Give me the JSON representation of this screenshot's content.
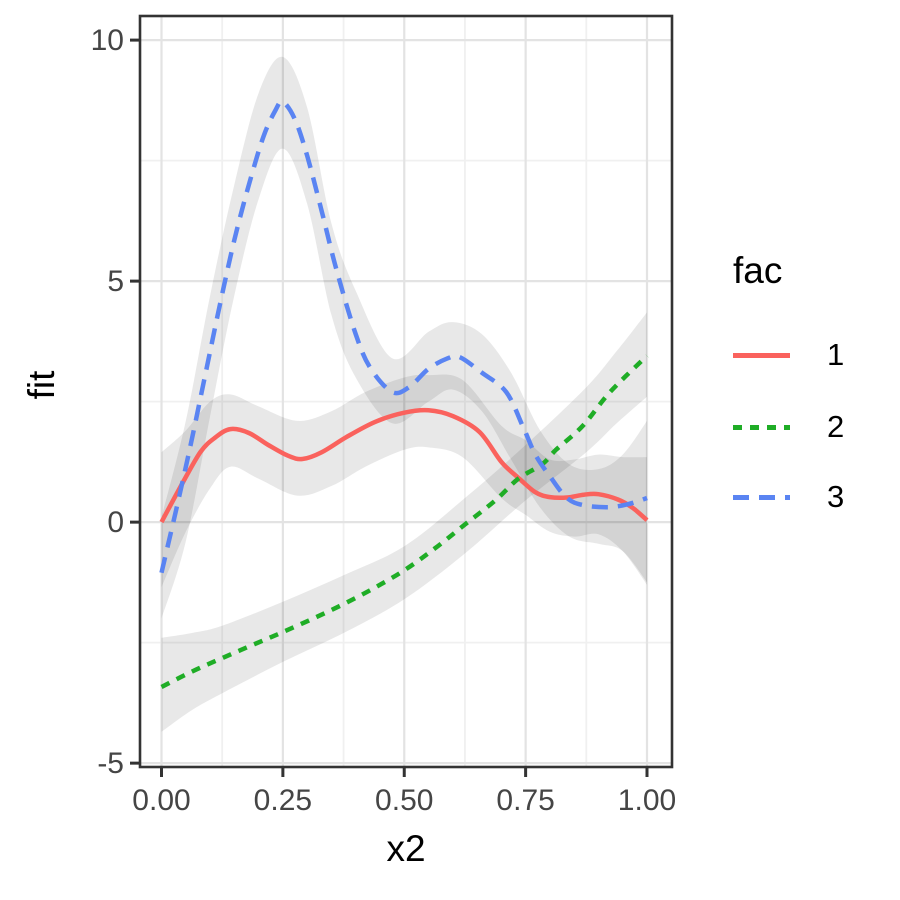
{
  "chart_data": {
    "type": "line",
    "title": "",
    "xlabel": "x2",
    "ylabel": "fit",
    "xlim": [
      -0.0443,
      1.0515
    ],
    "ylim": [
      -5.08,
      10.5
    ],
    "grid": true,
    "panel_border_color": "#333333",
    "major_grid_color": "#e3e3e3",
    "minor_grid_color": "#f0f0f0",
    "tick_color": "#333333",
    "tick_label_color": "#454545",
    "ribbon_fill": "rgba(0,0,0,0.09)",
    "x_ticks": {
      "values": [
        0,
        0.25,
        0.5,
        0.75,
        1.0
      ],
      "labels": [
        "0.00",
        "0.25",
        "0.50",
        "0.75",
        "1.00"
      ]
    },
    "y_ticks": {
      "values": [
        -5,
        0,
        5,
        10
      ],
      "labels": [
        "-5",
        "0",
        "5",
        "10"
      ]
    },
    "x_minor": [
      0.125,
      0.375,
      0.625,
      0.875
    ],
    "y_minor": [
      -2.5,
      2.5,
      7.5
    ],
    "legend": {
      "title": "fac",
      "position": "right"
    },
    "series": [
      {
        "name": "1",
        "color": "#fa625d",
        "dash": "solid",
        "points": [
          [
            0.0,
            0.0
          ],
          [
            0.04,
            0.75
          ],
          [
            0.08,
            1.45
          ],
          [
            0.11,
            1.75
          ],
          [
            0.142,
            1.93
          ],
          [
            0.18,
            1.85
          ],
          [
            0.22,
            1.6
          ],
          [
            0.26,
            1.38
          ],
          [
            0.29,
            1.31
          ],
          [
            0.33,
            1.45
          ],
          [
            0.38,
            1.76
          ],
          [
            0.44,
            2.08
          ],
          [
            0.5,
            2.27
          ],
          [
            0.55,
            2.32
          ],
          [
            0.6,
            2.2
          ],
          [
            0.655,
            1.87
          ],
          [
            0.7,
            1.25
          ],
          [
            0.735,
            0.92
          ],
          [
            0.77,
            0.62
          ],
          [
            0.8,
            0.52
          ],
          [
            0.835,
            0.51
          ],
          [
            0.87,
            0.57
          ],
          [
            0.9,
            0.58
          ],
          [
            0.94,
            0.47
          ],
          [
            0.97,
            0.3
          ],
          [
            1.0,
            0.04
          ]
        ],
        "ribbon": [
          [
            0.0,
            -1.35,
            1.45
          ],
          [
            0.05,
            -0.2,
            1.9
          ],
          [
            0.1,
            0.7,
            2.5
          ],
          [
            0.142,
            1.15,
            2.65
          ],
          [
            0.2,
            0.9,
            2.4
          ],
          [
            0.28,
            0.55,
            2.1
          ],
          [
            0.35,
            0.75,
            2.3
          ],
          [
            0.42,
            1.15,
            2.7
          ],
          [
            0.5,
            1.5,
            3.0
          ],
          [
            0.55,
            1.55,
            3.05
          ],
          [
            0.62,
            1.35,
            2.95
          ],
          [
            0.7,
            0.5,
            2.0
          ],
          [
            0.75,
            0.15,
            1.7
          ],
          [
            0.8,
            -0.2,
            1.3
          ],
          [
            0.85,
            -0.3,
            1.3
          ],
          [
            0.9,
            -0.25,
            1.4
          ],
          [
            0.95,
            -0.6,
            1.35
          ],
          [
            1.0,
            -1.3,
            1.35
          ]
        ]
      },
      {
        "name": "2",
        "color": "#1fad26",
        "dash": "dotted",
        "points": [
          [
            0.0,
            -3.42
          ],
          [
            0.0625,
            -3.1
          ],
          [
            0.125,
            -2.82
          ],
          [
            0.1875,
            -2.55
          ],
          [
            0.25,
            -2.28
          ],
          [
            0.3125,
            -2.0
          ],
          [
            0.375,
            -1.7
          ],
          [
            0.4375,
            -1.37
          ],
          [
            0.5,
            -1.0
          ],
          [
            0.5625,
            -0.55
          ],
          [
            0.625,
            -0.05
          ],
          [
            0.6875,
            0.45
          ],
          [
            0.735,
            0.9
          ],
          [
            0.784,
            1.2
          ],
          [
            0.8125,
            1.5
          ],
          [
            0.868,
            2.0
          ],
          [
            0.924,
            2.7
          ],
          [
            1.0,
            3.45
          ]
        ],
        "ribbon": [
          [
            0.0,
            -4.35,
            -2.4
          ],
          [
            0.0625,
            -3.9,
            -2.3
          ],
          [
            0.125,
            -3.55,
            -2.15
          ],
          [
            0.25,
            -2.9,
            -1.65
          ],
          [
            0.375,
            -2.3,
            -1.1
          ],
          [
            0.5,
            -1.6,
            -0.5
          ],
          [
            0.625,
            -0.65,
            0.5
          ],
          [
            0.75,
            0.45,
            1.6
          ],
          [
            0.875,
            1.45,
            2.8
          ],
          [
            0.9375,
            2.05,
            3.55
          ],
          [
            1.0,
            2.6,
            4.35
          ]
        ]
      },
      {
        "name": "3",
        "color": "#5a84f2",
        "dash": "dashed",
        "points": [
          [
            0.0,
            -1.05
          ],
          [
            0.03,
            0.25
          ],
          [
            0.06,
            1.6
          ],
          [
            0.09,
            3.05
          ],
          [
            0.12,
            4.5
          ],
          [
            0.15,
            5.85
          ],
          [
            0.18,
            7.0
          ],
          [
            0.21,
            8.0
          ],
          [
            0.235,
            8.55
          ],
          [
            0.25,
            8.72
          ],
          [
            0.275,
            8.35
          ],
          [
            0.3,
            7.6
          ],
          [
            0.33,
            6.45
          ],
          [
            0.36,
            5.25
          ],
          [
            0.4,
            3.9
          ],
          [
            0.43,
            3.2
          ],
          [
            0.475,
            2.7
          ],
          [
            0.51,
            2.8
          ],
          [
            0.55,
            3.18
          ],
          [
            0.59,
            3.4
          ],
          [
            0.615,
            3.42
          ],
          [
            0.66,
            3.1
          ],
          [
            0.71,
            2.7
          ],
          [
            0.745,
            1.97
          ],
          [
            0.77,
            1.4
          ],
          [
            0.8,
            0.95
          ],
          [
            0.835,
            0.5
          ],
          [
            0.87,
            0.35
          ],
          [
            0.92,
            0.31
          ],
          [
            0.96,
            0.37
          ],
          [
            1.0,
            0.5
          ]
        ],
        "ribbon": [
          [
            0.0,
            -2.0,
            0.1
          ],
          [
            0.05,
            -0.4,
            2.1
          ],
          [
            0.1,
            2.2,
            4.7
          ],
          [
            0.15,
            4.7,
            7.0
          ],
          [
            0.2,
            6.7,
            8.9
          ],
          [
            0.25,
            7.75,
            9.65
          ],
          [
            0.3,
            6.6,
            8.6
          ],
          [
            0.35,
            4.3,
            6.2
          ],
          [
            0.4,
            3.0,
            4.8
          ],
          [
            0.475,
            2.05,
            3.4
          ],
          [
            0.55,
            2.5,
            3.95
          ],
          [
            0.6,
            2.75,
            4.15
          ],
          [
            0.66,
            2.3,
            3.9
          ],
          [
            0.72,
            1.3,
            3.1
          ],
          [
            0.78,
            0.3,
            1.9
          ],
          [
            0.84,
            -0.3,
            1.2
          ],
          [
            0.9,
            -0.45,
            1.1
          ],
          [
            0.95,
            -0.6,
            1.4
          ],
          [
            1.0,
            -1.25,
            2.1
          ]
        ]
      }
    ]
  }
}
